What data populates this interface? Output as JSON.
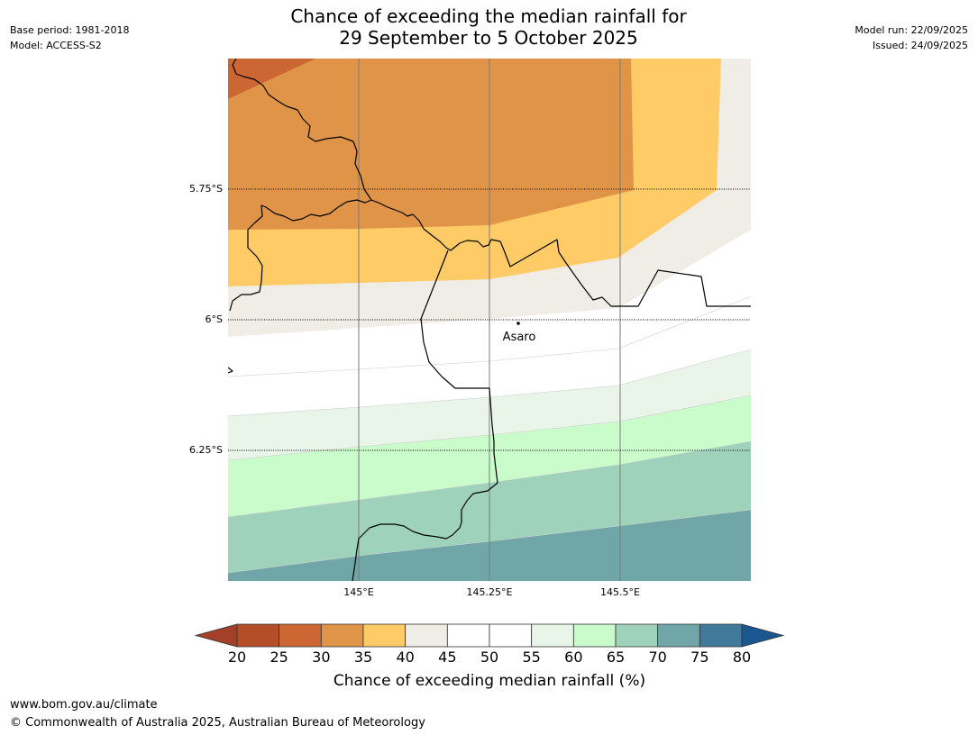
{
  "header": {
    "base_period": "Base period: 1981-2018",
    "model": "Model: ACCESS-S2",
    "title_line1": "Chance of exceeding the median rainfall for",
    "title_line2": "29 September to 5 October 2025",
    "model_run": "Model run: 22/09/2025",
    "issued": "Issued: 24/09/2025"
  },
  "map": {
    "lat_labels": [
      "5.75°S",
      "6°S",
      "6.25°S"
    ],
    "lon_labels": [
      "145°E",
      "145.25°E",
      "145.5°E"
    ],
    "place": "Asaro",
    "bands": [
      {
        "range": "25-30",
        "color": "#CC6633"
      },
      {
        "range": "30-35",
        "color": "#E09448"
      },
      {
        "range": "35-40",
        "color": "#FECB67"
      },
      {
        "range": "40-45",
        "color": "#F0ECE6"
      },
      {
        "range": "45-55",
        "color": "#FFFFFF"
      },
      {
        "range": "55-60",
        "color": "#E9F5E8"
      },
      {
        "range": "60-65",
        "color": "#CAFBCB"
      },
      {
        "range": "65-70",
        "color": "#9ED2BB"
      },
      {
        "range": "70-75",
        "color": "#71A6A9"
      }
    ]
  },
  "legend": {
    "ticks": [
      "20",
      "25",
      "30",
      "35",
      "40",
      "45",
      "50",
      "55",
      "60",
      "65",
      "70",
      "75",
      "80"
    ],
    "colors": [
      "#A3402A",
      "#B34E28",
      "#CC6633",
      "#E09448",
      "#FECB67",
      "#F0ECE6",
      "#FFFFFF",
      "#FFFFFF",
      "#E9F5E8",
      "#CAFBCB",
      "#9ED2BB",
      "#71A6A9",
      "#40799A",
      "#1C5691"
    ],
    "label": "Chance of exceeding median rainfall (%)"
  },
  "footer": {
    "url": "www.bom.gov.au/climate",
    "copyright": "© Commonwealth of Australia 2025, Australian Bureau of Meteorology"
  }
}
